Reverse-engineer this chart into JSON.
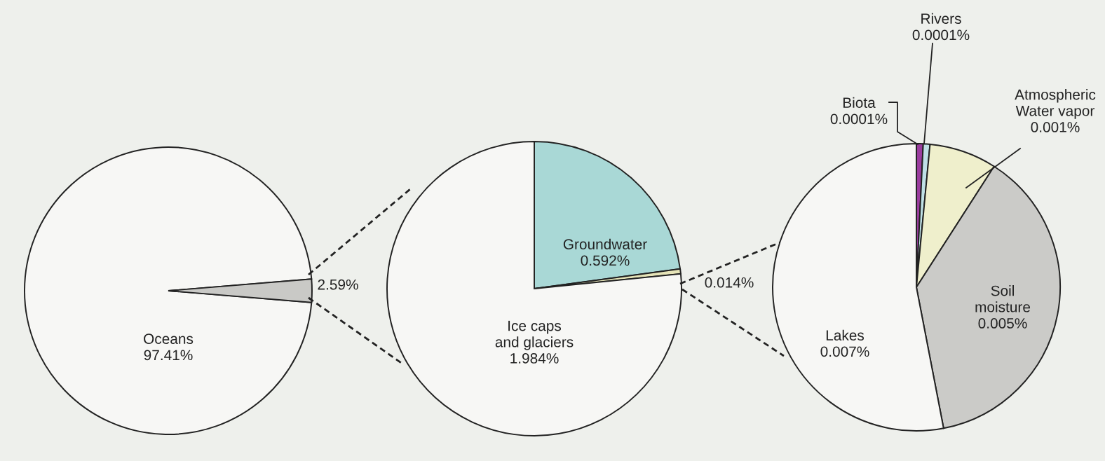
{
  "chart_data": [
    {
      "type": "pie",
      "categories": [
        "Oceans",
        null
      ],
      "values": [
        97.41,
        2.59
      ],
      "value_labels": [
        "97.41%",
        "2.59%"
      ],
      "colors": [
        "#f7f7f5",
        "#c9c9c6"
      ]
    },
    {
      "type": "pie",
      "categories": [
        "Groundwater",
        null,
        "Ice caps\nand glaciers"
      ],
      "values": [
        0.592,
        0.014,
        1.984
      ],
      "value_labels": [
        "0.592%",
        "0.014%",
        "1.984%"
      ],
      "colors": [
        "#a9d8d6",
        "#e6e4b8",
        "#f7f7f5"
      ]
    },
    {
      "type": "pie",
      "categories": [
        "Biota",
        "Rivers",
        "Atmospheric\nWater vapor",
        "Soil\nmoisture",
        "Lakes"
      ],
      "values": [
        0.0001,
        0.0001,
        0.001,
        0.005,
        0.007
      ],
      "value_labels": [
        "0.0001%",
        "0.0001%",
        "0.001%",
        "0.005%",
        "0.007%"
      ],
      "colors": [
        "#9a3c9e",
        "#bfe0e6",
        "#efefcc",
        "#cbcbc8",
        "#f7f7f5"
      ]
    }
  ]
}
